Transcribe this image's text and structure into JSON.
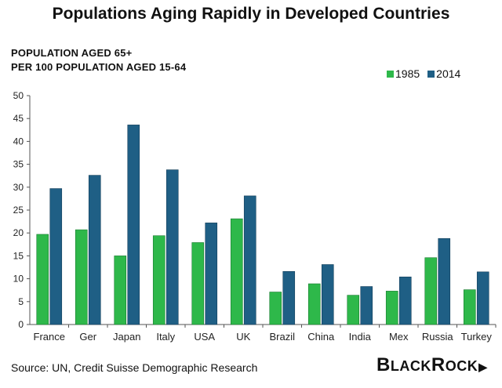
{
  "chart_data": {
    "type": "bar",
    "title": "Populations Aging Rapidly in Developed Countries",
    "ylabel_lines": [
      "POPULATION AGED 65+",
      "PER 100 POPULATION AGED 15-64"
    ],
    "categories": [
      "France",
      "Ger",
      "Japan",
      "Italy",
      "USA",
      "UK",
      "Brazil",
      "China",
      "India",
      "Mex",
      "Russia",
      "Turkey"
    ],
    "series": [
      {
        "name": "1985",
        "color": "#2eb84a",
        "values": [
          19.7,
          20.7,
          15.0,
          19.4,
          17.9,
          23.1,
          7.1,
          8.9,
          6.4,
          7.3,
          14.6,
          7.6
        ]
      },
      {
        "name": "2014",
        "color": "#1f5f85",
        "values": [
          29.7,
          32.6,
          43.6,
          33.8,
          22.2,
          28.1,
          11.6,
          13.1,
          8.3,
          10.4,
          18.8,
          11.5
        ]
      }
    ],
    "ylim": [
      0,
      50
    ],
    "yticks": [
      "0",
      "5",
      "10",
      "15",
      "20",
      "25",
      "30",
      "35",
      "40",
      "45",
      "50"
    ],
    "legend_position": "top-right",
    "grid": false
  },
  "footer": {
    "source": "Source: UN, Credit Suisse Demographic Research",
    "brand_first": "B",
    "brand_mid": "LACK",
    "brand_second": "R",
    "brand_end": "OCK",
    "brand_mark": "▶"
  }
}
